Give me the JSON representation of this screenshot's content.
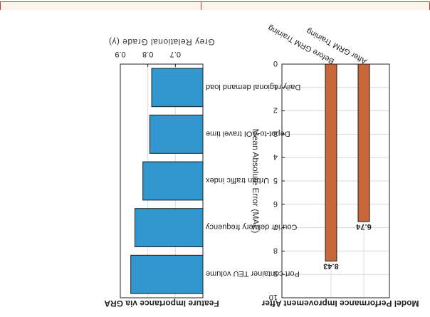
{
  "colors": {
    "left_bar": "#3397cf",
    "right_bar": "#c8683a",
    "axis": "#222222",
    "grid": "#d9d9d9"
  },
  "chart_data": [
    {
      "type": "bar",
      "orientation": "horizontal",
      "title": "Feature Importance via GRA",
      "xlabel": "Grey Relational Grade (γ)",
      "xlim": [
        0.6,
        0.9
      ],
      "xticks": [
        "0.7",
        "0.8",
        "0.9"
      ],
      "grid": true,
      "categories": [
        "Port container TEU volume",
        "Courier delivery frequency",
        "Urban traffic index",
        "Depot-to-AOI travel time",
        "Daily regional demand load"
      ],
      "values": [
        0.862,
        0.847,
        0.818,
        0.793,
        0.786
      ]
    },
    {
      "type": "bar",
      "title": "Model Performance Improvement After",
      "ylabel": "Mean Absolute Error (MAE)",
      "ylim": [
        0,
        10
      ],
      "yticks": [
        "0",
        "1",
        "2",
        "3",
        "4",
        "5",
        "6",
        "7",
        "8",
        "9",
        "10"
      ],
      "grid": true,
      "categories": [
        "Before GRM Training",
        "After GRM Training"
      ],
      "values": [
        8.43,
        6.74
      ],
      "data_labels": [
        "8.43",
        "6.74"
      ]
    }
  ]
}
